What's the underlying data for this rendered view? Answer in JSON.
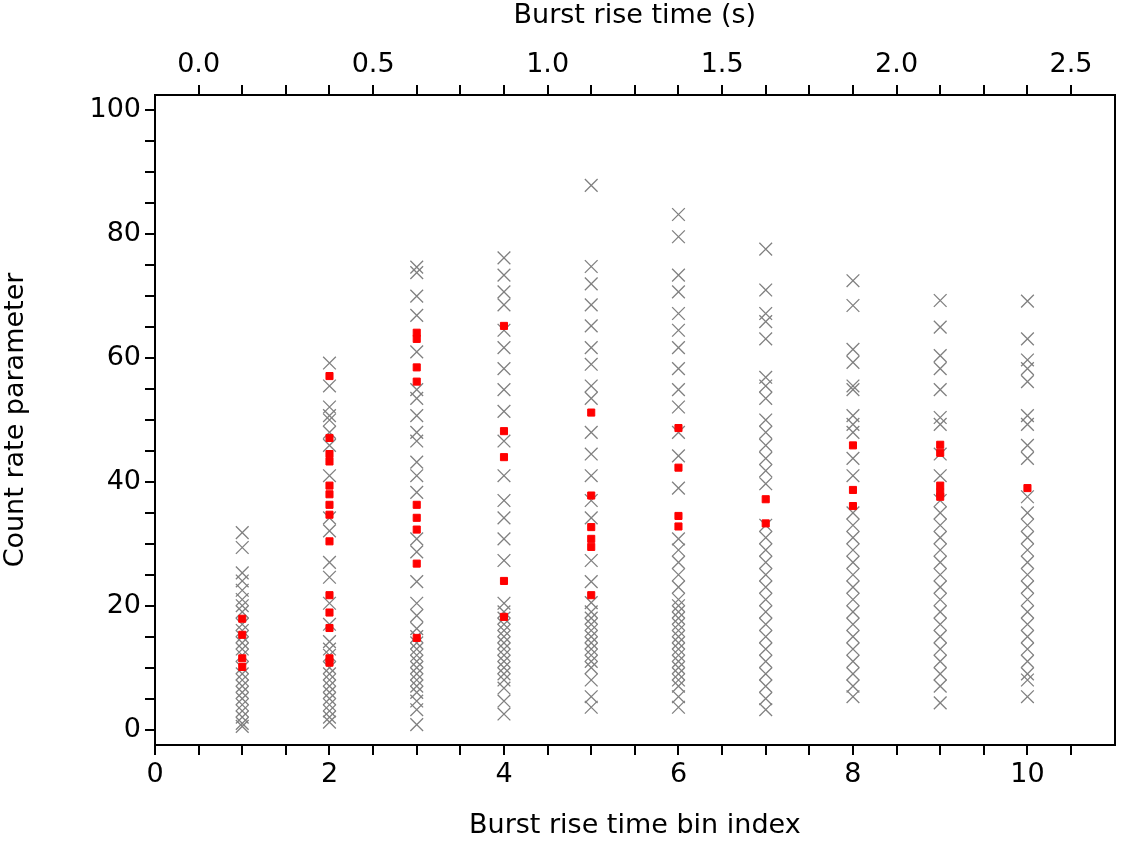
{
  "chart_data": {
    "type": "scatter",
    "xlabel": "Burst rise time bin index",
    "ylabel": "Count rate parameter",
    "x2label": "Burst rise time (s)",
    "xlim": [
      0,
      11
    ],
    "xticks": [
      {
        "value": 0,
        "label": "0"
      },
      {
        "value": 0.5,
        "label": null
      },
      {
        "value": 1,
        "label": null
      },
      {
        "value": 1.5,
        "label": null
      },
      {
        "value": 2,
        "label": "2"
      },
      {
        "value": 2.5,
        "label": null
      },
      {
        "value": 3,
        "label": null
      },
      {
        "value": 3.5,
        "label": null
      },
      {
        "value": 4,
        "label": "4"
      },
      {
        "value": 4.5,
        "label": null
      },
      {
        "value": 5,
        "label": null
      },
      {
        "value": 5.5,
        "label": null
      },
      {
        "value": 6,
        "label": "6"
      },
      {
        "value": 6.5,
        "label": null
      },
      {
        "value": 7,
        "label": null
      },
      {
        "value": 7.5,
        "label": null
      },
      {
        "value": 8,
        "label": "8"
      },
      {
        "value": 8.5,
        "label": null
      },
      {
        "value": 9,
        "label": null
      },
      {
        "value": 9.5,
        "label": null
      },
      {
        "value": 10,
        "label": "10"
      },
      {
        "value": 10.5,
        "label": null
      }
    ],
    "x2lim": [
      -0.125,
      2.625
    ],
    "x2ticks": [
      {
        "value": 0,
        "label": "0.0"
      },
      {
        "value": 0.125,
        "label": null
      },
      {
        "value": 0.25,
        "label": null
      },
      {
        "value": 0.375,
        "label": null
      },
      {
        "value": 0.5,
        "label": "0.5"
      },
      {
        "value": 0.625,
        "label": null
      },
      {
        "value": 0.75,
        "label": null
      },
      {
        "value": 0.875,
        "label": null
      },
      {
        "value": 1,
        "label": "1.0"
      },
      {
        "value": 1.125,
        "label": null
      },
      {
        "value": 1.25,
        "label": null
      },
      {
        "value": 1.375,
        "label": null
      },
      {
        "value": 1.5,
        "label": "1.5"
      },
      {
        "value": 1.625,
        "label": null
      },
      {
        "value": 1.75,
        "label": null
      },
      {
        "value": 1.875,
        "label": null
      },
      {
        "value": 2,
        "label": "2.0"
      },
      {
        "value": 2.125,
        "label": null
      },
      {
        "value": 2.25,
        "label": null
      },
      {
        "value": 2.375,
        "label": null
      },
      {
        "value": 2.5,
        "label": "2.5"
      }
    ],
    "ylim": [
      -2.5,
      102.5
    ],
    "yticks": [
      {
        "value": 0,
        "label": "0"
      },
      {
        "value": 5,
        "label": null
      },
      {
        "value": 10,
        "label": null
      },
      {
        "value": 15,
        "label": null
      },
      {
        "value": 20,
        "label": "20"
      },
      {
        "value": 25,
        "label": null
      },
      {
        "value": 30,
        "label": null
      },
      {
        "value": 35,
        "label": null
      },
      {
        "value": 40,
        "label": "40"
      },
      {
        "value": 45,
        "label": null
      },
      {
        "value": 50,
        "label": null
      },
      {
        "value": 55,
        "label": null
      },
      {
        "value": 60,
        "label": "60"
      },
      {
        "value": 65,
        "label": null
      },
      {
        "value": 70,
        "label": null
      },
      {
        "value": 75,
        "label": null
      },
      {
        "value": 80,
        "label": "80"
      },
      {
        "value": 85,
        "label": null
      },
      {
        "value": 90,
        "label": null
      },
      {
        "value": 95,
        "label": null
      },
      {
        "value": 100,
        "label": "100"
      }
    ],
    "grid": false,
    "legend": false,
    "series": [
      {
        "color": "#808080",
        "marker": "cross",
        "x": [
          1,
          1,
          1,
          1,
          1,
          1,
          1,
          1,
          1,
          1,
          1,
          1,
          1,
          1,
          1,
          1,
          1,
          1,
          1,
          1,
          1,
          1,
          1,
          1,
          1,
          2,
          2,
          2,
          2,
          2,
          2,
          2,
          2,
          2,
          2,
          2,
          2,
          2,
          2,
          2,
          2,
          2,
          2,
          2,
          2,
          2,
          2,
          2,
          2,
          2,
          2,
          2,
          3,
          3,
          3,
          3,
          3,
          3,
          3,
          3,
          3,
          3,
          3,
          3,
          3,
          3,
          3,
          3,
          3,
          3,
          3,
          3,
          3,
          3,
          3,
          3,
          3,
          3,
          3,
          3,
          3,
          3,
          3,
          3,
          4,
          4,
          4,
          4,
          4,
          4,
          4,
          4,
          4,
          4,
          4,
          4,
          4,
          4,
          4,
          4,
          4,
          4,
          4,
          4,
          4,
          4,
          4,
          4,
          4,
          4,
          4,
          4,
          4,
          4,
          4,
          5,
          5,
          5,
          5,
          5,
          5,
          5,
          5,
          5,
          5,
          5,
          5,
          5,
          5,
          5,
          5,
          5,
          5,
          5,
          5,
          5,
          5,
          5,
          5,
          5,
          5,
          5,
          5,
          5,
          5,
          6,
          6,
          6,
          6,
          6,
          6,
          6,
          6,
          6,
          6,
          6,
          6,
          6,
          6,
          6,
          6,
          6,
          6,
          6,
          6,
          6,
          6,
          6,
          6,
          6,
          6,
          6,
          6,
          6,
          6,
          6,
          6,
          6,
          6,
          6,
          7,
          7,
          7,
          7,
          7,
          7,
          7,
          7,
          7,
          7,
          7,
          7,
          7,
          7,
          7,
          7,
          7,
          7,
          7,
          7,
          7,
          7,
          7,
          7,
          7,
          7,
          7,
          7,
          7,
          7,
          8,
          8,
          8,
          8,
          8,
          8,
          8,
          8,
          8,
          8,
          8,
          8,
          8,
          8,
          8,
          8,
          8,
          8,
          8,
          8,
          8,
          8,
          8,
          8,
          8,
          8,
          8,
          9,
          9,
          9,
          9,
          9,
          9,
          9,
          9,
          9,
          9,
          9,
          9,
          9,
          9,
          9,
          9,
          9,
          9,
          9,
          9,
          9,
          9,
          9,
          9,
          9,
          9,
          10,
          10,
          10,
          10,
          10,
          10,
          10,
          10,
          10,
          10,
          10,
          10,
          10,
          10,
          10,
          10,
          10,
          10,
          10,
          10,
          10,
          10,
          10,
          10,
          10,
          10
        ],
        "values": [
          31.8,
          29.4,
          25.3,
          24,
          22.5,
          21,
          20,
          19,
          17,
          16,
          15,
          14,
          13,
          12,
          10,
          9,
          8,
          7,
          6,
          5,
          4,
          3,
          2,
          1,
          0.5,
          59.2,
          55.5,
          52.1,
          50.7,
          50,
          48,
          45.9,
          41,
          34.2,
          32.1,
          27,
          24.6,
          20.4,
          17,
          14.2,
          13,
          12,
          10,
          9,
          8,
          7,
          6,
          5,
          4,
          3,
          2,
          1.2,
          74.7,
          73.8,
          70,
          66.9,
          61,
          54.9,
          53.5,
          50.7,
          48,
          46.6,
          43.2,
          41,
          38.3,
          30.8,
          28.7,
          23.9,
          20.4,
          18.4,
          16.3,
          15,
          14,
          13,
          12,
          11,
          10,
          9,
          8,
          7,
          6,
          4.6,
          3.2,
          0.8,
          76.2,
          73.4,
          70.7,
          68.6,
          64.5,
          61.7,
          58.3,
          54.9,
          51.4,
          46.6,
          41,
          37,
          34.2,
          30.8,
          27.3,
          20.4,
          19,
          18,
          17,
          16,
          15,
          14,
          13,
          12,
          11,
          10,
          9,
          8,
          6.7,
          4.6,
          2.5,
          87.9,
          74.8,
          72,
          68.6,
          65.2,
          61.7,
          59,
          55.5,
          53.5,
          48,
          44.5,
          41,
          37,
          34.2,
          27.3,
          23.9,
          20.5,
          19,
          18,
          17,
          16,
          15,
          14,
          13,
          12,
          11,
          10,
          8,
          5.3,
          3.6,
          83.2,
          79.6,
          73.4,
          70.7,
          67.2,
          64.5,
          61.7,
          58.3,
          54.9,
          52.1,
          48,
          44.2,
          39,
          30.8,
          29,
          27,
          25,
          23,
          21,
          20,
          19,
          18,
          17,
          16,
          15,
          14,
          13,
          12,
          11,
          10,
          9,
          8,
          7,
          5.3,
          3.6,
          77.6,
          71,
          67.2,
          65.9,
          63.1,
          56.9,
          55.5,
          53.5,
          50,
          48,
          45.9,
          43.8,
          41.8,
          39.7,
          33,
          31,
          29,
          27,
          25,
          23,
          21,
          19,
          17,
          15,
          13,
          11,
          9,
          7,
          5,
          3.2,
          72.5,
          68.5,
          61.4,
          59.3,
          55.5,
          54.9,
          50.7,
          49.3,
          48,
          43.8,
          41,
          35,
          33,
          31,
          29,
          27,
          25,
          23,
          21,
          19,
          17,
          15,
          13,
          11,
          9,
          7,
          5.3,
          69.3,
          65,
          60.4,
          58.3,
          54.9,
          50.4,
          49.3,
          44.5,
          41,
          37,
          35,
          33,
          31,
          29,
          27,
          25,
          23,
          21,
          19,
          17,
          15,
          13,
          11,
          9,
          7,
          4.3,
          69.2,
          63.1,
          59.7,
          58.3,
          56.2,
          50.7,
          49.3,
          45.9,
          43.8,
          37.6,
          35,
          33,
          31,
          29,
          27,
          25,
          23,
          21,
          19,
          17,
          15,
          13,
          11,
          9,
          8,
          5.3
        ]
      },
      {
        "color": "#ff0000",
        "marker": "square",
        "x": [
          1,
          1,
          1,
          1,
          2,
          2,
          2,
          2,
          2,
          2,
          2,
          2,
          2,
          2,
          2,
          2,
          2,
          2,
          3,
          3,
          3,
          3,
          3,
          3,
          3,
          3,
          3,
          4,
          4,
          4,
          4,
          4,
          5,
          5,
          5,
          5,
          5,
          5,
          6,
          6,
          6,
          6,
          7,
          7,
          8,
          8,
          8,
          9,
          9,
          9,
          9,
          9,
          10
        ],
        "values": [
          17.9,
          15.3,
          11.5,
          10.1,
          57.1,
          47.1,
          44.5,
          43.3,
          39.4,
          38,
          36.3,
          34.7,
          30.4,
          21.7,
          18.9,
          16.4,
          11.5,
          10.8,
          64.1,
          63.1,
          58.5,
          56.2,
          36.3,
          34.2,
          32.3,
          26.8,
          14.8,
          65.2,
          48.2,
          44,
          24,
          18.2,
          51.2,
          37.8,
          32.7,
          30.8,
          29.5,
          21.7,
          48.7,
          42.3,
          34.5,
          32.8,
          37.2,
          33.3,
          45.9,
          38.7,
          36.1,
          46,
          44.7,
          39.4,
          38.3,
          37.6,
          39
        ]
      }
    ]
  }
}
